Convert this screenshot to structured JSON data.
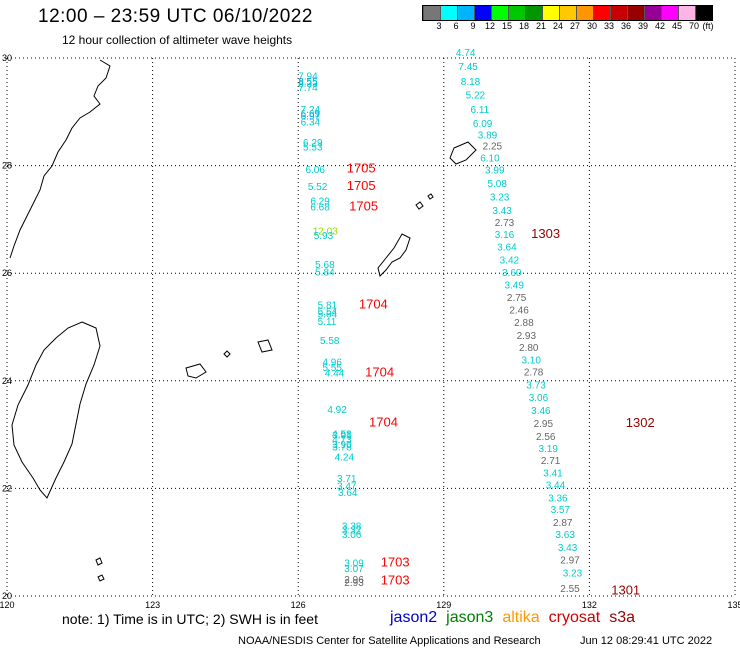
{
  "header": {
    "title": "12:00 – 23:59 UTC 06/10/2022",
    "subtitle": "12 hour collection of altimeter wave heights"
  },
  "legend": {
    "unit": "(ft)",
    "labels": [
      "3",
      "6",
      "9",
      "12",
      "15",
      "18",
      "21",
      "24",
      "27",
      "30",
      "33",
      "36",
      "39",
      "42",
      "45",
      "70"
    ],
    "colors": [
      "#777777",
      "#00ffff",
      "#00b4ff",
      "#0000ff",
      "#00ff00",
      "#00c800",
      "#009600",
      "#ffff00",
      "#ffc800",
      "#ff9600",
      "#ff0000",
      "#c80000",
      "#960000",
      "#960096",
      "#ff00ff",
      "#ffb4e6",
      "#000000"
    ]
  },
  "axes": {
    "lon_labels": [
      "120",
      "123",
      "126",
      "129",
      "132",
      "135"
    ],
    "lat_labels": [
      "30",
      "28",
      "26",
      "24",
      "22",
      "20"
    ]
  },
  "tracks": [
    {
      "id": "1705",
      "label_color": "#ff0000",
      "track_labels": [
        {
          "text": "1705",
          "lon": 127.0,
          "lat": 27.87
        },
        {
          "text": "1705",
          "lon": 127.0,
          "lat": 27.55
        },
        {
          "text": "1705",
          "lon": 127.05,
          "lat": 27.17
        }
      ]
    },
    {
      "id": "1704",
      "label_color": "#ff0000",
      "track_labels": [
        {
          "text": "1704",
          "lon": 127.25,
          "lat": 25.34
        },
        {
          "text": "1704",
          "lon": 127.38,
          "lat": 24.08
        },
        {
          "text": "1704",
          "lon": 127.46,
          "lat": 23.15
        }
      ]
    },
    {
      "id": "1703",
      "label_color": "#ff0000",
      "track_labels": [
        {
          "text": "1703",
          "lon": 127.7,
          "lat": 20.55
        },
        {
          "text": "1703",
          "lon": 127.7,
          "lat": 20.21
        }
      ]
    },
    {
      "id": "1303",
      "label_color": "#990000",
      "track_labels": [
        {
          "text": "1303",
          "lon": 130.8,
          "lat": 26.65
        }
      ]
    },
    {
      "id": "1302",
      "label_color": "#990000",
      "track_labels": [
        {
          "text": "1302",
          "lon": 132.75,
          "lat": 23.14
        }
      ]
    },
    {
      "id": "1301",
      "label_color": "#990000",
      "track_labels": [
        {
          "text": "1301",
          "lon": 132.45,
          "lat": 20.03
        }
      ]
    }
  ],
  "wave_heights": [
    {
      "v": "7.94",
      "lon": 126.0,
      "lat": 29.6,
      "c": "cyan"
    },
    {
      "v": "8.55",
      "lon": 126.0,
      "lat": 29.5,
      "c": "sky"
    },
    {
      "v": "8.33",
      "lon": 126.0,
      "lat": 29.46,
      "c": "cyan"
    },
    {
      "v": "7.74",
      "lon": 126.0,
      "lat": 29.39,
      "c": "cyan"
    },
    {
      "v": "7.24",
      "lon": 126.05,
      "lat": 28.98,
      "c": "cyan"
    },
    {
      "v": "6.69",
      "lon": 126.05,
      "lat": 28.9,
      "c": "cyan"
    },
    {
      "v": "6.97",
      "lon": 126.05,
      "lat": 28.86,
      "c": "sky"
    },
    {
      "v": "6.34",
      "lon": 126.05,
      "lat": 28.75,
      "c": "cyan"
    },
    {
      "v": "6.29",
      "lon": 126.1,
      "lat": 28.36,
      "c": "cyan"
    },
    {
      "v": "5.53",
      "lon": 126.1,
      "lat": 28.28,
      "c": "cyan"
    },
    {
      "v": "6.06",
      "lon": 126.15,
      "lat": 27.86,
      "c": "cyan"
    },
    {
      "v": "5.52",
      "lon": 126.2,
      "lat": 27.55,
      "c": "cyan"
    },
    {
      "v": "6.29",
      "lon": 126.25,
      "lat": 27.28,
      "c": "cyan"
    },
    {
      "v": "6.68",
      "lon": 126.25,
      "lat": 27.17,
      "c": "cyan"
    },
    {
      "v": "12.03",
      "lon": 126.3,
      "lat": 26.72,
      "c": "green"
    },
    {
      "v": "5.93",
      "lon": 126.32,
      "lat": 26.64,
      "c": "cyan"
    },
    {
      "v": "5.68",
      "lon": 126.35,
      "lat": 26.1,
      "c": "cyan"
    },
    {
      "v": "5.84",
      "lon": 126.35,
      "lat": 25.96,
      "c": "cyan"
    },
    {
      "v": "5.81",
      "lon": 126.4,
      "lat": 25.34,
      "c": "cyan"
    },
    {
      "v": "5.54",
      "lon": 126.4,
      "lat": 25.22,
      "c": "cyan"
    },
    {
      "v": "5.64",
      "lon": 126.4,
      "lat": 25.18,
      "c": "cyan"
    },
    {
      "v": "5.11",
      "lon": 126.4,
      "lat": 25.04,
      "c": "cyan"
    },
    {
      "v": "5.58",
      "lon": 126.45,
      "lat": 24.68,
      "c": "cyan"
    },
    {
      "v": "4.96",
      "lon": 126.5,
      "lat": 24.28,
      "c": "cyan"
    },
    {
      "v": "5.55",
      "lon": 126.5,
      "lat": 24.18,
      "c": "cyan"
    },
    {
      "v": "4.44",
      "lon": 126.55,
      "lat": 24.08,
      "c": "cyan"
    },
    {
      "v": "4.92",
      "lon": 126.6,
      "lat": 23.4,
      "c": "cyan"
    },
    {
      "v": "3.91",
      "lon": 126.7,
      "lat": 22.93,
      "c": "cyan"
    },
    {
      "v": "4.58",
      "lon": 126.7,
      "lat": 22.95,
      "c": "cyan"
    },
    {
      "v": "4.73",
      "lon": 126.7,
      "lat": 22.84,
      "c": "cyan"
    },
    {
      "v": "3.90",
      "lon": 126.7,
      "lat": 22.75,
      "c": "cyan"
    },
    {
      "v": "3.78",
      "lon": 126.7,
      "lat": 22.7,
      "c": "cyan"
    },
    {
      "v": "4.24",
      "lon": 126.75,
      "lat": 22.52,
      "c": "cyan"
    },
    {
      "v": "3.71",
      "lon": 126.8,
      "lat": 22.12,
      "c": "cyan"
    },
    {
      "v": "3.47",
      "lon": 126.8,
      "lat": 21.98,
      "c": "cyan"
    },
    {
      "v": "3.64",
      "lon": 126.82,
      "lat": 21.86,
      "c": "cyan"
    },
    {
      "v": "3.38",
      "lon": 126.9,
      "lat": 21.24,
      "c": "cyan"
    },
    {
      "v": "3.32",
      "lon": 126.9,
      "lat": 21.16,
      "c": "cyan"
    },
    {
      "v": "3.06",
      "lon": 126.9,
      "lat": 21.08,
      "c": "cyan"
    },
    {
      "v": "3.09",
      "lon": 126.95,
      "lat": 20.55,
      "c": "cyan"
    },
    {
      "v": "3.07",
      "lon": 126.95,
      "lat": 20.45,
      "c": "cyan"
    },
    {
      "v": "2.96",
      "lon": 126.95,
      "lat": 20.24,
      "c": "gray"
    },
    {
      "v": "2.93",
      "lon": 126.95,
      "lat": 20.19,
      "c": "gray"
    },
    {
      "v": "4.74",
      "lon": 129.25,
      "lat": 30.04,
      "c": "cyan"
    },
    {
      "v": "7.45",
      "lon": 129.3,
      "lat": 29.78,
      "c": "cyan"
    },
    {
      "v": "8.18",
      "lon": 129.35,
      "lat": 29.5,
      "c": "cyan"
    },
    {
      "v": "5.22",
      "lon": 129.45,
      "lat": 29.25,
      "c": "cyan"
    },
    {
      "v": "6.11",
      "lon": 129.55,
      "lat": 28.98,
      "c": "cyan"
    },
    {
      "v": "6.09",
      "lon": 129.6,
      "lat": 28.72,
      "c": "cyan"
    },
    {
      "v": "3.89",
      "lon": 129.7,
      "lat": 28.5,
      "c": "cyan"
    },
    {
      "v": "2.25",
      "lon": 129.8,
      "lat": 28.3,
      "c": "gray"
    },
    {
      "v": "6.10",
      "lon": 129.75,
      "lat": 28.08,
      "c": "cyan"
    },
    {
      "v": "3.99",
      "lon": 129.85,
      "lat": 27.85,
      "c": "cyan"
    },
    {
      "v": "5.08",
      "lon": 129.9,
      "lat": 27.6,
      "c": "cyan"
    },
    {
      "v": "3.23",
      "lon": 129.95,
      "lat": 27.35,
      "c": "cyan"
    },
    {
      "v": "3.43",
      "lon": 130.0,
      "lat": 27.1,
      "c": "cyan"
    },
    {
      "v": "2.73",
      "lon": 130.05,
      "lat": 26.88,
      "c": "gray"
    },
    {
      "v": "3.16",
      "lon": 130.05,
      "lat": 26.65,
      "c": "cyan"
    },
    {
      "v": "3.64",
      "lon": 130.1,
      "lat": 26.42,
      "c": "cyan"
    },
    {
      "v": "3.42",
      "lon": 130.15,
      "lat": 26.18,
      "c": "cyan"
    },
    {
      "v": "3.60",
      "lon": 130.2,
      "lat": 25.95,
      "c": "cyan"
    },
    {
      "v": "3.49",
      "lon": 130.25,
      "lat": 25.72,
      "c": "cyan"
    },
    {
      "v": "2.75",
      "lon": 130.3,
      "lat": 25.48,
      "c": "gray"
    },
    {
      "v": "2.46",
      "lon": 130.35,
      "lat": 25.25,
      "c": "gray"
    },
    {
      "v": "2.88",
      "lon": 130.45,
      "lat": 25.02,
      "c": "gray"
    },
    {
      "v": "2.93",
      "lon": 130.5,
      "lat": 24.78,
      "c": "gray"
    },
    {
      "v": "2.80",
      "lon": 130.55,
      "lat": 24.55,
      "c": "gray"
    },
    {
      "v": "3.10",
      "lon": 130.6,
      "lat": 24.32,
      "c": "cyan"
    },
    {
      "v": "2.78",
      "lon": 130.65,
      "lat": 24.1,
      "c": "gray"
    },
    {
      "v": "3.73",
      "lon": 130.7,
      "lat": 23.86,
      "c": "cyan"
    },
    {
      "v": "3.06",
      "lon": 130.75,
      "lat": 23.62,
      "c": "cyan"
    },
    {
      "v": "3.46",
      "lon": 130.8,
      "lat": 23.38,
      "c": "cyan"
    },
    {
      "v": "2.95",
      "lon": 130.85,
      "lat": 23.14,
      "c": "gray"
    },
    {
      "v": "2.56",
      "lon": 130.9,
      "lat": 22.9,
      "c": "gray"
    },
    {
      "v": "3.19",
      "lon": 130.95,
      "lat": 22.68,
      "c": "cyan"
    },
    {
      "v": "2.71",
      "lon": 131.0,
      "lat": 22.45,
      "c": "gray"
    },
    {
      "v": "3.41",
      "lon": 131.05,
      "lat": 22.22,
      "c": "cyan"
    },
    {
      "v": "3.44",
      "lon": 131.1,
      "lat": 22.0,
      "c": "cyan"
    },
    {
      "v": "3.36",
      "lon": 131.15,
      "lat": 21.76,
      "c": "cyan"
    },
    {
      "v": "3.57",
      "lon": 131.2,
      "lat": 21.54,
      "c": "cyan"
    },
    {
      "v": "2.87",
      "lon": 131.25,
      "lat": 21.3,
      "c": "gray"
    },
    {
      "v": "3.63",
      "lon": 131.3,
      "lat": 21.08,
      "c": "cyan"
    },
    {
      "v": "3.43",
      "lon": 131.35,
      "lat": 20.84,
      "c": "cyan"
    },
    {
      "v": "2.97",
      "lon": 131.4,
      "lat": 20.6,
      "c": "gray"
    },
    {
      "v": "3.23",
      "lon": 131.45,
      "lat": 20.36,
      "c": "cyan"
    },
    {
      "v": "2.55",
      "lon": 131.4,
      "lat": 20.07,
      "c": "gray"
    }
  ],
  "footer": {
    "note": "note: 1) Time is in UTC; 2) SWH is in feet",
    "missions": [
      {
        "name": "jason2",
        "color": "#0000cc"
      },
      {
        "name": "jason3",
        "color": "#008000"
      },
      {
        "name": "altika",
        "color": "#ff9900"
      },
      {
        "name": "cryosat",
        "color": "#cc0000"
      },
      {
        "name": "s3a",
        "color": "#990000"
      }
    ],
    "credit": "NOAA/NESDIS Center for Satellite Applications and Research",
    "timestamp": "Jun 12 08:29:41 UTC 2022"
  }
}
